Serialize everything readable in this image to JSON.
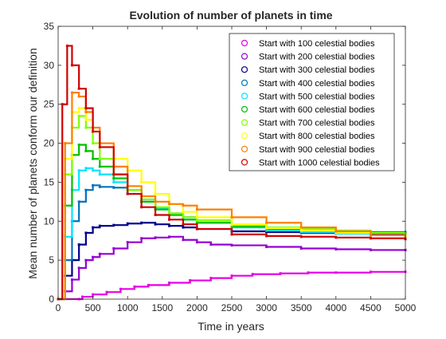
{
  "chart_data": {
    "type": "scatter",
    "title": "Evolution of number of planets in time",
    "xlabel": "Time in years",
    "ylabel": "Mean number of planets conform our definition",
    "xlim": [
      0,
      5000
    ],
    "ylim": [
      0,
      35
    ],
    "xticks": [
      0,
      500,
      1000,
      1500,
      2000,
      2500,
      3000,
      3500,
      4000,
      4500,
      5000
    ],
    "yticks": [
      0,
      5,
      10,
      15,
      20,
      25,
      30,
      35
    ],
    "grid": false,
    "legend_position": "top-right",
    "series": [
      {
        "name": "Start with 100 celestial bodies",
        "color": "#e600e6",
        "points": [
          [
            0,
            0
          ],
          [
            300,
            0
          ],
          [
            350,
            0.3
          ],
          [
            500,
            0.6
          ],
          [
            700,
            0.9
          ],
          [
            900,
            1.3
          ],
          [
            1100,
            1.6
          ],
          [
            1300,
            1.8
          ],
          [
            1600,
            2.1
          ],
          [
            1900,
            2.4
          ],
          [
            2200,
            2.7
          ],
          [
            2500,
            3.0
          ],
          [
            2800,
            3.2
          ],
          [
            3200,
            3.3
          ],
          [
            3600,
            3.4
          ],
          [
            4000,
            3.4
          ],
          [
            4500,
            3.5
          ],
          [
            5000,
            3.5
          ]
        ]
      },
      {
        "name": "Start with 200 celestial bodies",
        "color": "#9400d3",
        "points": [
          [
            0,
            0
          ],
          [
            100,
            1
          ],
          [
            200,
            2.5
          ],
          [
            300,
            4
          ],
          [
            400,
            5
          ],
          [
            500,
            5.4
          ],
          [
            600,
            5.8
          ],
          [
            800,
            6.5
          ],
          [
            1000,
            7.3
          ],
          [
            1200,
            7.8
          ],
          [
            1400,
            7.9
          ],
          [
            1600,
            8.0
          ],
          [
            1800,
            7.6
          ],
          [
            2000,
            7.3
          ],
          [
            2200,
            7.0
          ],
          [
            2500,
            6.9
          ],
          [
            3000,
            6.7
          ],
          [
            3500,
            6.5
          ],
          [
            4000,
            6.4
          ],
          [
            4500,
            6.3
          ],
          [
            5000,
            6.3
          ]
        ]
      },
      {
        "name": "Start with 300 celestial bodies",
        "color": "#00008b",
        "points": [
          [
            0,
            0
          ],
          [
            100,
            3
          ],
          [
            200,
            5
          ],
          [
            300,
            7
          ],
          [
            400,
            8.5
          ],
          [
            500,
            9.2
          ],
          [
            600,
            9.4
          ],
          [
            800,
            9.5
          ],
          [
            1000,
            9.7
          ],
          [
            1200,
            9.8
          ],
          [
            1400,
            9.6
          ],
          [
            1600,
            9.4
          ],
          [
            1800,
            9.2
          ],
          [
            2000,
            9.0
          ],
          [
            2500,
            8.7
          ],
          [
            3000,
            8.6
          ],
          [
            3500,
            8.5
          ],
          [
            4000,
            8.4
          ],
          [
            4500,
            8.4
          ],
          [
            5000,
            8.3
          ]
        ]
      },
      {
        "name": "Start with 400 celestial bodies",
        "color": "#0072bd",
        "points": [
          [
            0,
            0
          ],
          [
            100,
            5
          ],
          [
            200,
            10
          ],
          [
            300,
            12.5
          ],
          [
            400,
            14
          ],
          [
            500,
            14.6
          ],
          [
            600,
            14.4
          ],
          [
            800,
            14.3
          ],
          [
            1000,
            13.5
          ],
          [
            1200,
            12.5
          ],
          [
            1400,
            11.6
          ],
          [
            1600,
            11.0
          ],
          [
            1800,
            10.5
          ],
          [
            2000,
            10.1
          ],
          [
            2500,
            9.5
          ],
          [
            3000,
            9.1
          ],
          [
            3500,
            8.9
          ],
          [
            4000,
            8.7
          ],
          [
            4500,
            8.6
          ],
          [
            5000,
            8.6
          ]
        ]
      },
      {
        "name": "Start with 500 celestial bodies",
        "color": "#00e5ff",
        "points": [
          [
            0,
            0
          ],
          [
            100,
            8
          ],
          [
            200,
            14
          ],
          [
            300,
            16.5
          ],
          [
            400,
            16.8
          ],
          [
            500,
            16.5
          ],
          [
            600,
            16.0
          ],
          [
            800,
            15.0
          ],
          [
            1000,
            14.0
          ],
          [
            1200,
            12.8
          ],
          [
            1400,
            11.7
          ],
          [
            1600,
            10.8
          ],
          [
            1800,
            10.2
          ],
          [
            2000,
            9.8
          ],
          [
            2500,
            9.2
          ],
          [
            3000,
            8.8
          ],
          [
            3500,
            8.6
          ],
          [
            4000,
            8.4
          ],
          [
            4500,
            8.2
          ],
          [
            5000,
            8.0
          ]
        ]
      },
      {
        "name": "Start with 600 celestial bodies",
        "color": "#00c000",
        "points": [
          [
            0,
            0
          ],
          [
            100,
            12
          ],
          [
            200,
            18.5
          ],
          [
            300,
            19.8
          ],
          [
            400,
            19.0
          ],
          [
            500,
            18.0
          ],
          [
            600,
            17.0
          ],
          [
            800,
            15.5
          ],
          [
            1000,
            14.0
          ],
          [
            1200,
            12.5
          ],
          [
            1400,
            11.5
          ],
          [
            1600,
            10.8
          ],
          [
            1800,
            10.2
          ],
          [
            2000,
            9.8
          ],
          [
            2500,
            9.3
          ],
          [
            3000,
            9.0
          ],
          [
            3500,
            8.8
          ],
          [
            4000,
            8.6
          ],
          [
            4500,
            8.5
          ],
          [
            5000,
            8.4
          ]
        ]
      },
      {
        "name": "Start with 700 celestial bodies",
        "color": "#80ff00",
        "points": [
          [
            0,
            0
          ],
          [
            100,
            16
          ],
          [
            200,
            22
          ],
          [
            300,
            23.5
          ],
          [
            400,
            22.0
          ],
          [
            500,
            20.0
          ],
          [
            600,
            18.0
          ],
          [
            800,
            16.0
          ],
          [
            1000,
            14.0
          ],
          [
            1200,
            12.8
          ],
          [
            1400,
            11.8
          ],
          [
            1600,
            11.0
          ],
          [
            1800,
            10.5
          ],
          [
            2000,
            10.1
          ],
          [
            2500,
            9.5
          ],
          [
            3000,
            9.2
          ],
          [
            3500,
            9.0
          ],
          [
            4000,
            8.8
          ],
          [
            4500,
            8.5
          ],
          [
            5000,
            8.2
          ]
        ]
      },
      {
        "name": "Start with 800 celestial bodies",
        "color": "#ffff00",
        "points": [
          [
            0,
            0
          ],
          [
            100,
            18
          ],
          [
            200,
            24.0
          ],
          [
            300,
            24.5
          ],
          [
            400,
            23.0
          ],
          [
            500,
            21.5
          ],
          [
            600,
            20.0
          ],
          [
            800,
            18.0
          ],
          [
            1000,
            16.5
          ],
          [
            1200,
            15.0
          ],
          [
            1400,
            13.5
          ],
          [
            1600,
            12.2
          ],
          [
            1800,
            11.2
          ],
          [
            2000,
            10.5
          ],
          [
            2500,
            9.6
          ],
          [
            3000,
            9.1
          ],
          [
            3500,
            8.8
          ],
          [
            4000,
            8.5
          ],
          [
            4500,
            8.2
          ],
          [
            5000,
            7.9
          ]
        ]
      },
      {
        "name": "Start with 900 celestial bodies",
        "color": "#ff7f00",
        "points": [
          [
            0,
            0
          ],
          [
            100,
            20
          ],
          [
            200,
            26.5
          ],
          [
            300,
            26.0
          ],
          [
            400,
            24.0
          ],
          [
            500,
            22.0
          ],
          [
            600,
            20.0
          ],
          [
            800,
            17.0
          ],
          [
            1000,
            14.5
          ],
          [
            1200,
            13.2
          ],
          [
            1400,
            12.5
          ],
          [
            1600,
            12.2
          ],
          [
            1800,
            12.0
          ],
          [
            2000,
            11.5
          ],
          [
            2500,
            10.5
          ],
          [
            3000,
            9.8
          ],
          [
            3500,
            9.2
          ],
          [
            4000,
            8.7
          ],
          [
            4500,
            8.2
          ],
          [
            5000,
            7.8
          ]
        ]
      },
      {
        "name": "Start with 1000 celestial bodies",
        "color": "#d00000",
        "points": [
          [
            0,
            0
          ],
          [
            60,
            25
          ],
          [
            130,
            32.5
          ],
          [
            200,
            30.0
          ],
          [
            300,
            27.0
          ],
          [
            400,
            24.5
          ],
          [
            500,
            21.5
          ],
          [
            600,
            19.5
          ],
          [
            800,
            16.0
          ],
          [
            1000,
            13.5
          ],
          [
            1200,
            11.8
          ],
          [
            1400,
            10.8
          ],
          [
            1600,
            10.2
          ],
          [
            1800,
            9.6
          ],
          [
            2000,
            9.0
          ],
          [
            2500,
            8.3
          ],
          [
            3000,
            8.1
          ],
          [
            3500,
            8.0
          ],
          [
            4000,
            7.9
          ],
          [
            4500,
            7.8
          ],
          [
            5000,
            7.7
          ]
        ]
      }
    ]
  }
}
